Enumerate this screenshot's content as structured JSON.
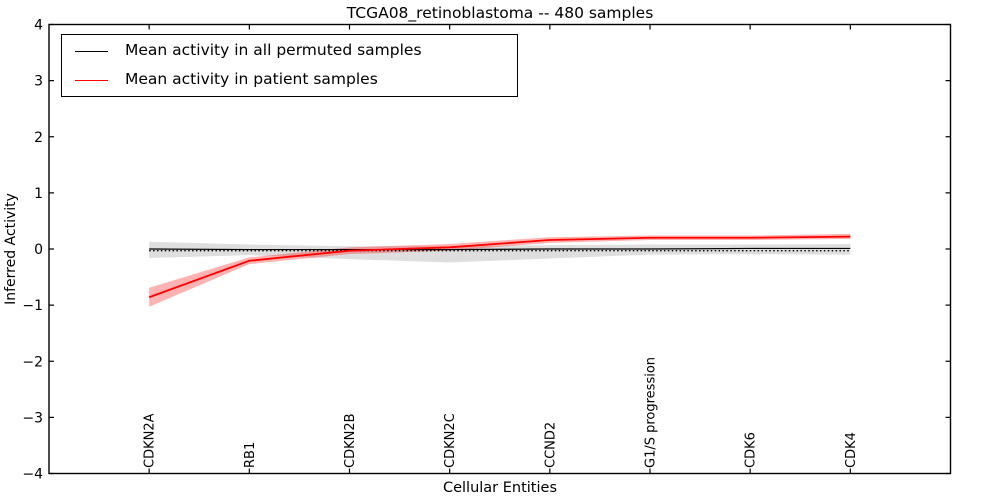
{
  "chart_data": {
    "type": "line",
    "title": "TCGA08_retinoblastoma -- 480 samples",
    "xlabel": "Cellular Entities",
    "ylabel": "Inferred Activity",
    "xlim": [
      0,
      9
    ],
    "ylim": [
      -4,
      4
    ],
    "grid": false,
    "categories": [
      "CDKN2A",
      "RB1",
      "CDKN2B",
      "CDKN2C",
      "CCND2",
      "G1/S progression",
      "CDK6",
      "CDK4"
    ],
    "x_positions": [
      1,
      2,
      3,
      4,
      5,
      6,
      7,
      8
    ],
    "ytick_values": [
      4,
      3,
      2,
      1,
      0,
      -1,
      -2,
      -3,
      -4
    ],
    "ytick_labels": [
      "4",
      "3",
      "2",
      "1",
      "0",
      "−1",
      "−2",
      "−3",
      "−4"
    ],
    "legend": {
      "position": "upper left",
      "items": [
        {
          "label": "Mean activity in all permuted samples",
          "color": "#000000"
        },
        {
          "label": "Mean activity in patient samples",
          "color": "#ff0000"
        }
      ]
    },
    "reference_line": {
      "value": -0.03,
      "style": "dotted",
      "color": "#000000"
    },
    "series": [
      {
        "name": "Mean activity in all permuted samples",
        "color": "#000000",
        "line_width": 1.2,
        "values": [
          0.0,
          -0.01,
          -0.01,
          -0.01,
          0.0,
          0.0,
          0.01,
          0.01
        ],
        "band_upper": [
          0.13,
          0.08,
          0.05,
          0.05,
          0.07,
          0.08,
          0.08,
          0.09
        ],
        "band_lower": [
          -0.16,
          -0.11,
          -0.18,
          -0.24,
          -0.17,
          -0.1,
          -0.09,
          -0.1
        ],
        "band_color": "#000000",
        "band_opacity": 0.13
      },
      {
        "name": "Mean activity in patient samples",
        "color": "#ff0000",
        "line_width": 1.8,
        "values": [
          -0.86,
          -0.21,
          -0.03,
          0.03,
          0.16,
          0.2,
          0.2,
          0.22
        ],
        "band_upper": [
          -0.69,
          -0.15,
          0.03,
          0.09,
          0.21,
          0.24,
          0.24,
          0.27
        ],
        "band_lower": [
          -1.03,
          -0.27,
          -0.09,
          -0.03,
          0.11,
          0.16,
          0.16,
          0.18
        ],
        "band_color": "#ff0000",
        "band_opacity": 0.3
      }
    ],
    "colors": {
      "axes": "#000000",
      "background": "#ffffff"
    }
  }
}
